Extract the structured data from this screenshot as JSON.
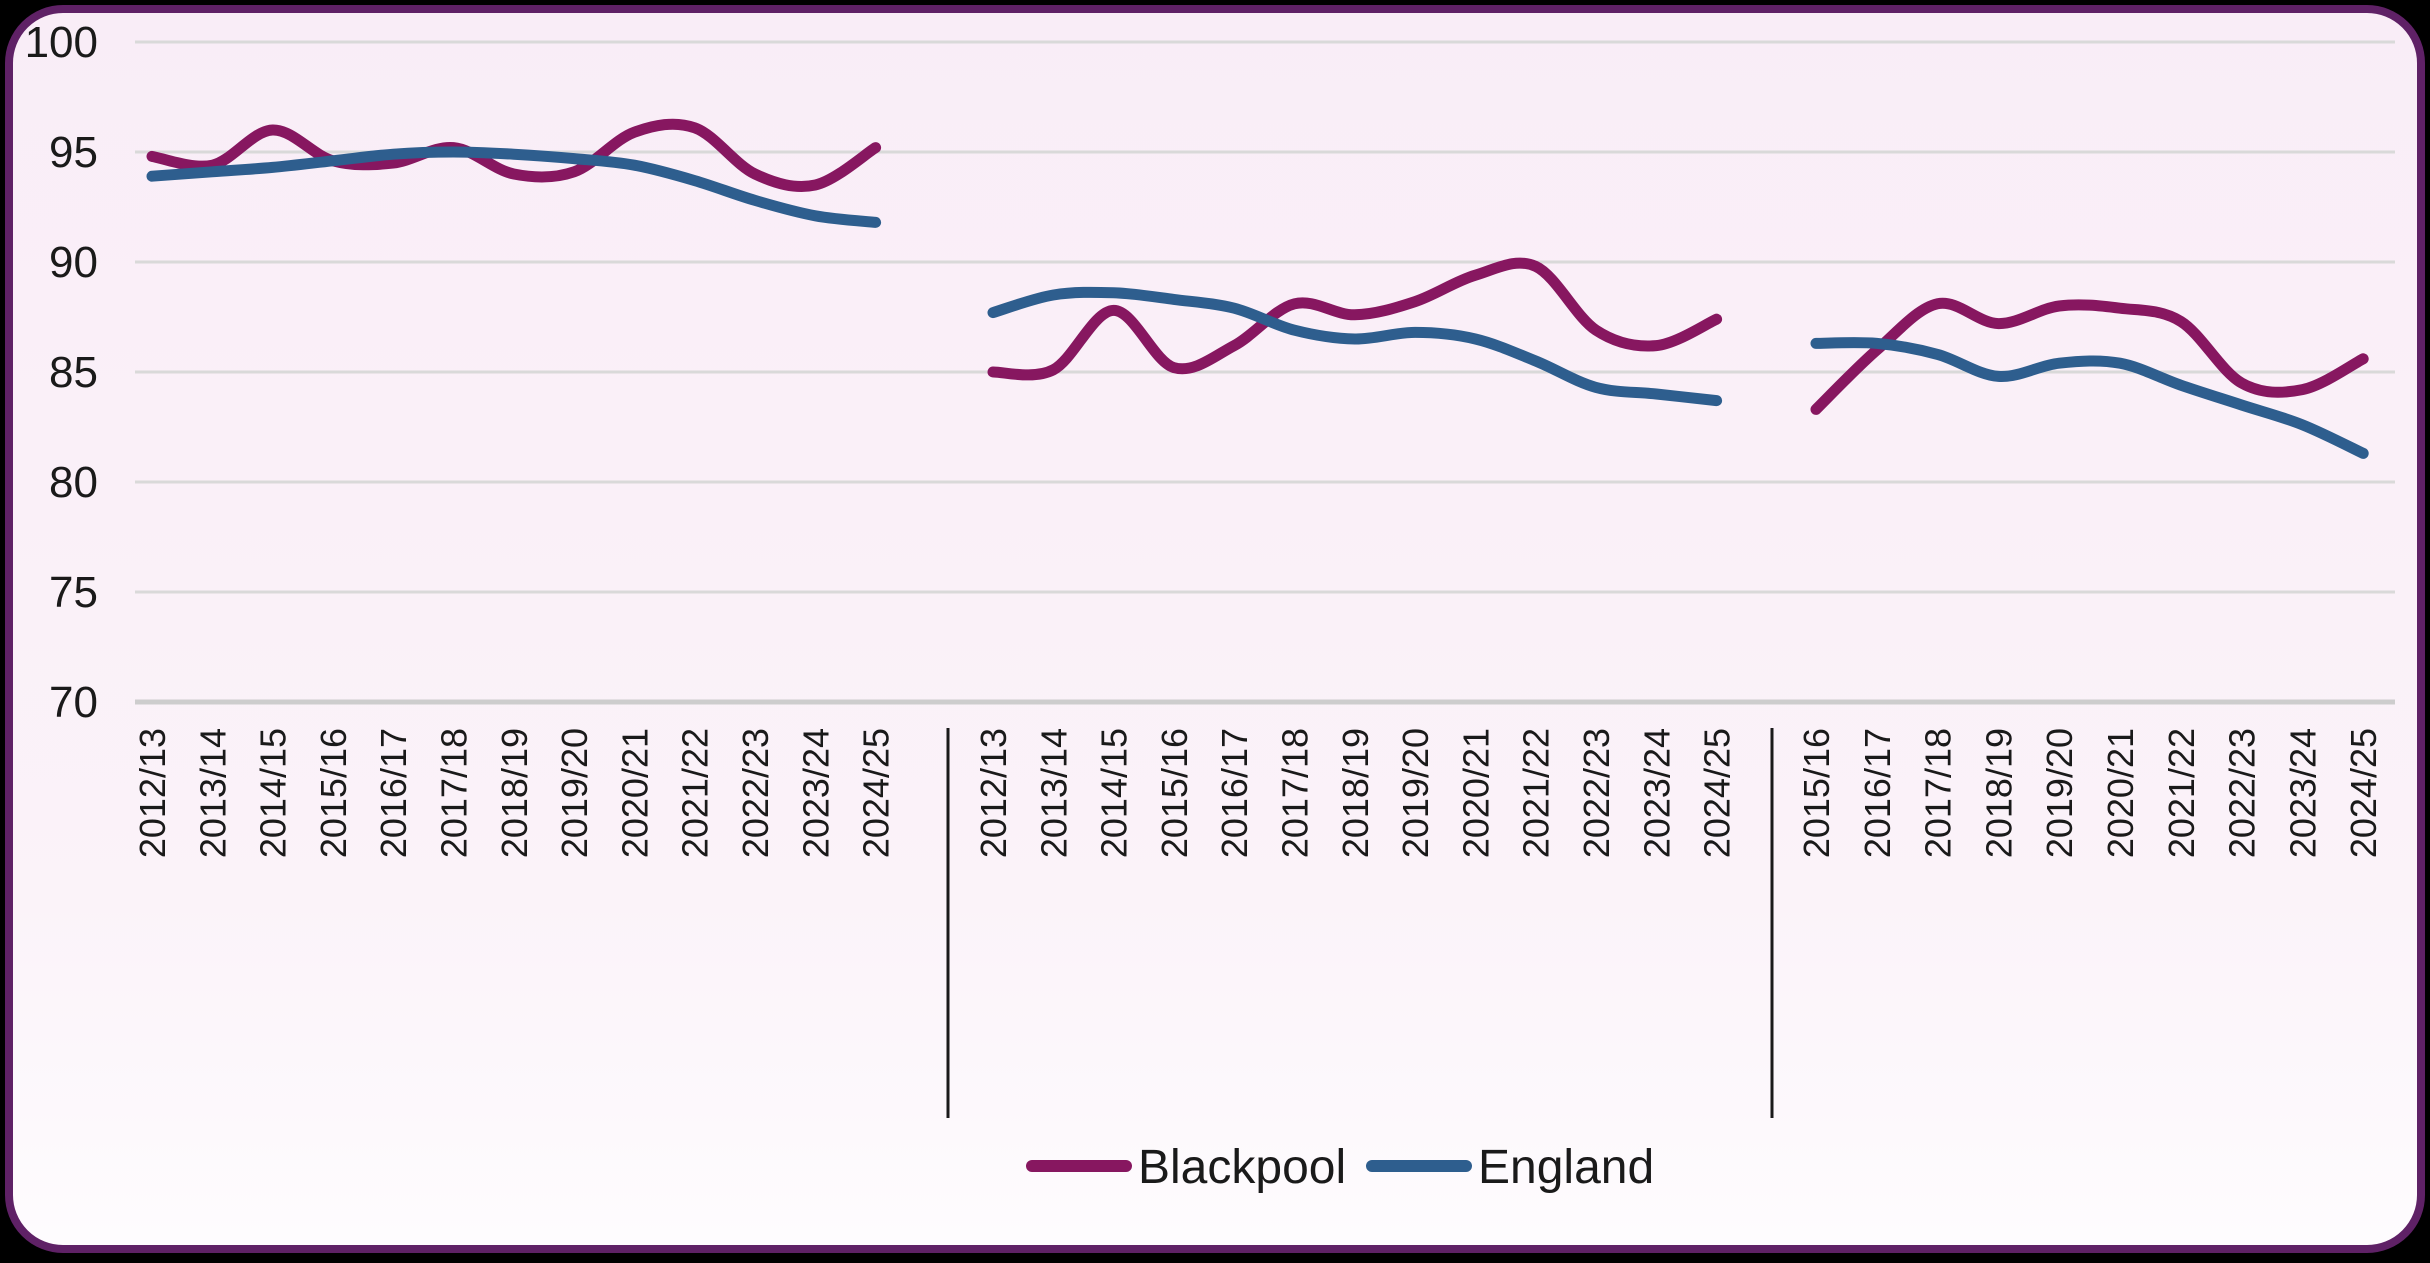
{
  "page": {
    "background_color": "#000000",
    "card_background_top": "#f9edf7",
    "card_background_bottom": "#fefcfe",
    "card_border_color": "#5f2166",
    "gridline_color": "#d9d9d9",
    "axis_line_color": "#cdcdcd",
    "separator_color": "#1a1a1a",
    "text_color": "#1a1a1a"
  },
  "legend": {
    "items": [
      {
        "label": "Blackpool",
        "color": "#871760"
      },
      {
        "label": "England",
        "color": "#2e5e8e"
      }
    ]
  },
  "chart_data": {
    "type": "line",
    "title": "",
    "grid": true,
    "legend_position": "bottom",
    "y_axis": {
      "min": 70,
      "max": 100,
      "step": 5,
      "tick_labels": [
        "100",
        "95",
        "90",
        "85",
        "80",
        "75",
        "70"
      ]
    },
    "series_names": [
      "Blackpool",
      "England"
    ],
    "panels": [
      {
        "categories": [
          "2012/13",
          "2013/14",
          "2014/15",
          "2015/16",
          "2016/17",
          "2017/18",
          "2018/19",
          "2019/20",
          "2020/21",
          "2021/22",
          "2022/23",
          "2023/24",
          "2024/25"
        ],
        "series": [
          {
            "name": "Blackpool",
            "color": "#871760",
            "values": [
              94.8,
              94.4,
              96.0,
              94.6,
              94.5,
              95.2,
              94.0,
              94.1,
              95.9,
              96.1,
              94.0,
              93.5,
              95.2
            ]
          },
          {
            "name": "England",
            "color": "#2e5e8e",
            "values": [
              93.9,
              94.1,
              94.3,
              94.6,
              94.9,
              95.0,
              94.9,
              94.7,
              94.4,
              93.7,
              92.8,
              92.1,
              91.8
            ]
          }
        ]
      },
      {
        "categories": [
          "2012/13",
          "2013/14",
          "2014/15",
          "2015/16",
          "2016/17",
          "2017/18",
          "2018/19",
          "2019/20",
          "2020/21",
          "2021/22",
          "2022/23",
          "2023/24",
          "2024/25"
        ],
        "series": [
          {
            "name": "Blackpool",
            "color": "#871760",
            "values": [
              85.0,
              85.1,
              87.8,
              85.2,
              86.2,
              88.1,
              87.6,
              88.2,
              89.4,
              89.8,
              86.9,
              86.2,
              87.4
            ]
          },
          {
            "name": "England",
            "color": "#2e5e8e",
            "values": [
              87.7,
              88.5,
              88.6,
              88.3,
              87.9,
              86.9,
              86.5,
              86.8,
              86.5,
              85.5,
              84.3,
              84.0,
              83.7
            ]
          }
        ]
      },
      {
        "categories": [
          "2015/16",
          "2016/17",
          "2017/18",
          "2018/19",
          "2019/20",
          "2020/21",
          "2021/22",
          "2022/23",
          "2023/24",
          "2024/25"
        ],
        "series": [
          {
            "name": "Blackpool",
            "color": "#871760",
            "values": [
              83.3,
              86.0,
              88.1,
              87.2,
              88.0,
              87.9,
              87.3,
              84.5,
              84.2,
              85.6
            ]
          },
          {
            "name": "England",
            "color": "#2e5e8e",
            "values": [
              86.3,
              86.3,
              85.8,
              84.8,
              85.4,
              85.4,
              84.4,
              83.5,
              82.6,
              81.3
            ]
          }
        ]
      }
    ]
  }
}
